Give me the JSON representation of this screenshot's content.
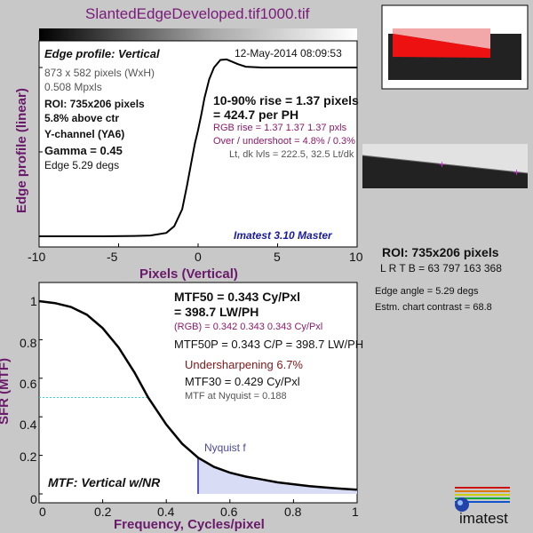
{
  "figure_title": "SlantedEdgeDeveloped.tif1000.tif",
  "edge_panel": {
    "heading": "Edge profile: Vertical",
    "datetime": "12-May-2014 08:09:53",
    "info": [
      "873 x 582 pixels (WxH)",
      "0.508 Mpxls"
    ],
    "roi_line": "ROI:  735x206 pixels",
    "above_ctr": "5.8% above ctr",
    "channel": "Y-channel  (YA6)",
    "gamma": "Gamma = 0.45",
    "edge_deg": "Edge 5.29 degs",
    "rise_line1": "10-90% rise = 1.37 pixels",
    "rise_line2": "= 424.7 per PH",
    "rgb_rise": "RGB rise = 1.37  1.37  1.37 pxls",
    "overshoot": "Over / undershoot = 4.8% / 0.3%",
    "levels": "Lt, dk lvls = 222.5, 32.5   Lt/dk",
    "version": "Imatest 3.10 Master"
  },
  "mtf_panel": {
    "mtf50_line1": "MTF50 = 0.343 Cy/Pxl",
    "mtf50_line2": "= 398.7 LW/PH",
    "rgb_line": "(RGB) = 0.342  0.343  0.343 Cy/Pxl",
    "mtf50p": "MTF50P = 0.343 C/P = 398.7 LW/PH",
    "undersharpening": "Undersharpening  6.7%",
    "mtf30": "MTF30 = 0.429 Cy/Pxl",
    "nyquist_val": "MTF at Nyquist = 0.188",
    "nyquist_label": "Nyquist f",
    "footer": "MTF: Vertical w/NR"
  },
  "right_panel": {
    "roi": "ROI:  735x206 pixels",
    "lrtb": "L R  T B = 63 797  163 368",
    "edge_angle": "Edge angle = 5.29 degs",
    "contrast": "Estm. chart contrast = 68.8",
    "logo": "imatest"
  },
  "chart_data": [
    {
      "type": "line",
      "xlabel": "Pixels (Vertical)",
      "ylabel": "Edge profile (linear)",
      "xlim": [
        -10,
        10
      ],
      "xticks": [
        -10,
        -5,
        0,
        5,
        10
      ],
      "x": [
        -10,
        -8,
        -6,
        -4,
        -3,
        -2,
        -1.5,
        -1,
        -0.7,
        -0.4,
        -0.2,
        0,
        0.2,
        0.4,
        0.7,
        1,
        1.4,
        1.8,
        2.5,
        3,
        4,
        6,
        8,
        10
      ],
      "y": [
        0.0,
        0.0,
        0.0,
        0.002,
        0.005,
        0.02,
        0.06,
        0.16,
        0.3,
        0.45,
        0.55,
        0.63,
        0.72,
        0.82,
        0.93,
        1.0,
        1.045,
        1.048,
        1.02,
        1.005,
        1.0,
        1.0,
        1.0,
        1.0
      ]
    },
    {
      "type": "line",
      "xlabel": "Frequency, Cycles/pixel",
      "ylabel": "SFR (MTF)",
      "xlim": [
        0,
        1
      ],
      "ylim": [
        0,
        1.05
      ],
      "xticks": [
        0,
        0.2,
        0.4,
        0.6,
        0.8,
        1
      ],
      "yticks": [
        0,
        0.2,
        0.4,
        0.6,
        0.8,
        1
      ],
      "nyquist": 0.5,
      "mtf50_level": 0.5,
      "x": [
        0,
        0.05,
        0.1,
        0.15,
        0.2,
        0.25,
        0.3,
        0.343,
        0.4,
        0.45,
        0.5,
        0.55,
        0.6,
        0.65,
        0.7,
        0.75,
        0.8,
        0.85,
        0.9,
        0.95,
        1.0
      ],
      "y": [
        1.0,
        0.99,
        0.97,
        0.93,
        0.86,
        0.76,
        0.63,
        0.5,
        0.36,
        0.26,
        0.188,
        0.14,
        0.11,
        0.09,
        0.075,
        0.06,
        0.05,
        0.04,
        0.033,
        0.027,
        0.022
      ]
    }
  ]
}
